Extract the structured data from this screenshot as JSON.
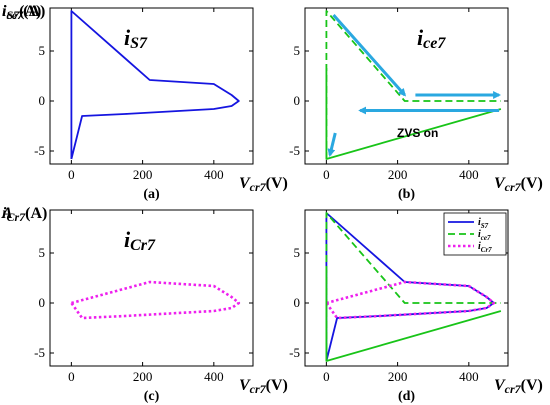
{
  "colors": {
    "is7": "#1515e0",
    "ice7": "#18c418",
    "icr7": "#ee20ee",
    "arrow": "#2aa8e0",
    "axis": "#000000"
  },
  "chart_data": [
    {
      "id": "a",
      "type": "line",
      "caption": "(a)",
      "ylabel": {
        "main": "i",
        "sub": "S7",
        "unit": "(A)"
      },
      "xlabel": {
        "main": "V",
        "sub": "cr7",
        "unit": "(V)"
      },
      "title": {
        "main": "i",
        "sub": "S7"
      },
      "xlim": [
        -60,
        510
      ],
      "ylim": [
        -6.3,
        9.3
      ],
      "xticks": [
        "0",
        "200",
        "400"
      ],
      "yticks": [
        "5",
        "0",
        "-5"
      ],
      "series": [
        {
          "color_key": "is7",
          "style": "solid",
          "x": [
            0,
            0,
            220,
            400,
            450,
            470,
            450,
            400,
            300,
            150,
            30,
            0
          ],
          "y": [
            -5.8,
            9.0,
            2.1,
            1.7,
            0.6,
            0.0,
            -0.5,
            -0.8,
            -1.0,
            -1.3,
            -1.5,
            -5.8
          ]
        }
      ]
    },
    {
      "id": "b",
      "type": "line",
      "caption": "(b)",
      "ylabel": {
        "main": "i",
        "sub": "ce7",
        "unit": "(A)"
      },
      "xlabel": {
        "main": "V",
        "sub": "cr7",
        "unit": "(V)"
      },
      "title": {
        "main": "i",
        "sub": "ce7"
      },
      "annotation": "ZVS  on",
      "xlim": [
        -60,
        510
      ],
      "ylim": [
        -6.3,
        9.3
      ],
      "xticks": [
        "0",
        "200",
        "400"
      ],
      "yticks": [
        "5",
        "0",
        "-5"
      ],
      "series": [
        {
          "color_key": "ice7",
          "style": "dashed",
          "x": [
            0,
            0,
            220,
            490
          ],
          "y": [
            -5.8,
            9.0,
            0.0,
            0.0
          ]
        },
        {
          "color_key": "ice7",
          "style": "solid",
          "x": [
            0,
            0,
            490
          ],
          "y": [
            3.3,
            -5.8,
            -0.8
          ]
        }
      ]
    },
    {
      "id": "c",
      "type": "line",
      "caption": "(c)",
      "ylabel": {
        "main": "i",
        "sub": "Cr7",
        "unit": "(A)"
      },
      "xlabel": {
        "main": "V",
        "sub": "cr7",
        "unit": "(V)"
      },
      "title": {
        "main": "i",
        "sub": "Cr7"
      },
      "xlim": [
        -60,
        510
      ],
      "ylim": [
        -6.3,
        9.3
      ],
      "xticks": [
        "0",
        "200",
        "400"
      ],
      "yticks": [
        "5",
        "0",
        "-5"
      ],
      "series": [
        {
          "color_key": "icr7",
          "style": "dotted",
          "x": [
            0,
            220,
            400,
            450,
            470,
            450,
            400,
            300,
            150,
            30,
            0
          ],
          "y": [
            0.0,
            2.1,
            1.7,
            0.6,
            0.0,
            -0.5,
            -0.8,
            -1.0,
            -1.3,
            -1.5,
            0.0
          ]
        }
      ]
    },
    {
      "id": "d",
      "type": "line",
      "caption": "(d)",
      "ylabel": {
        "main": "A",
        "sub": "",
        "unit": ""
      },
      "xlabel": {
        "main": "V",
        "sub": "cr7",
        "unit": "(V)"
      },
      "xlim": [
        -60,
        510
      ],
      "ylim": [
        -6.3,
        9.3
      ],
      "xticks": [
        "0",
        "200",
        "400"
      ],
      "yticks": [
        "5",
        "0",
        "-5"
      ],
      "legend": "top-right",
      "series": [
        {
          "name": "i",
          "name_sub": "S7",
          "color_key": "is7",
          "style": "solid",
          "x": [
            0,
            0,
            220,
            400,
            450,
            470,
            450,
            400,
            300,
            150,
            30,
            0
          ],
          "y": [
            -5.8,
            9.0,
            2.1,
            1.7,
            0.6,
            0.0,
            -0.5,
            -0.8,
            -1.0,
            -1.3,
            -1.5,
            -5.8
          ]
        },
        {
          "name": "i",
          "name_sub": "ce7",
          "color_key": "ice7",
          "style": "dashed",
          "x": [
            0,
            0,
            220,
            490
          ],
          "y": [
            -5.8,
            9.0,
            0.0,
            0.0
          ]
        },
        {
          "name": "i",
          "name_sub": "Cr7",
          "color_key": "icr7",
          "style": "dotted",
          "x": [
            0,
            220,
            400,
            450,
            470,
            450,
            400,
            300,
            150,
            30,
            0
          ],
          "y": [
            0.0,
            2.1,
            1.7,
            0.6,
            0.0,
            -0.5,
            -0.8,
            -1.0,
            -1.3,
            -1.5,
            0.0
          ]
        },
        {
          "name": "",
          "color_key": "ice7",
          "style": "solid",
          "x": [
            0,
            0,
            490
          ],
          "y": [
            3.3,
            -5.8,
            -0.8
          ]
        }
      ]
    }
  ]
}
